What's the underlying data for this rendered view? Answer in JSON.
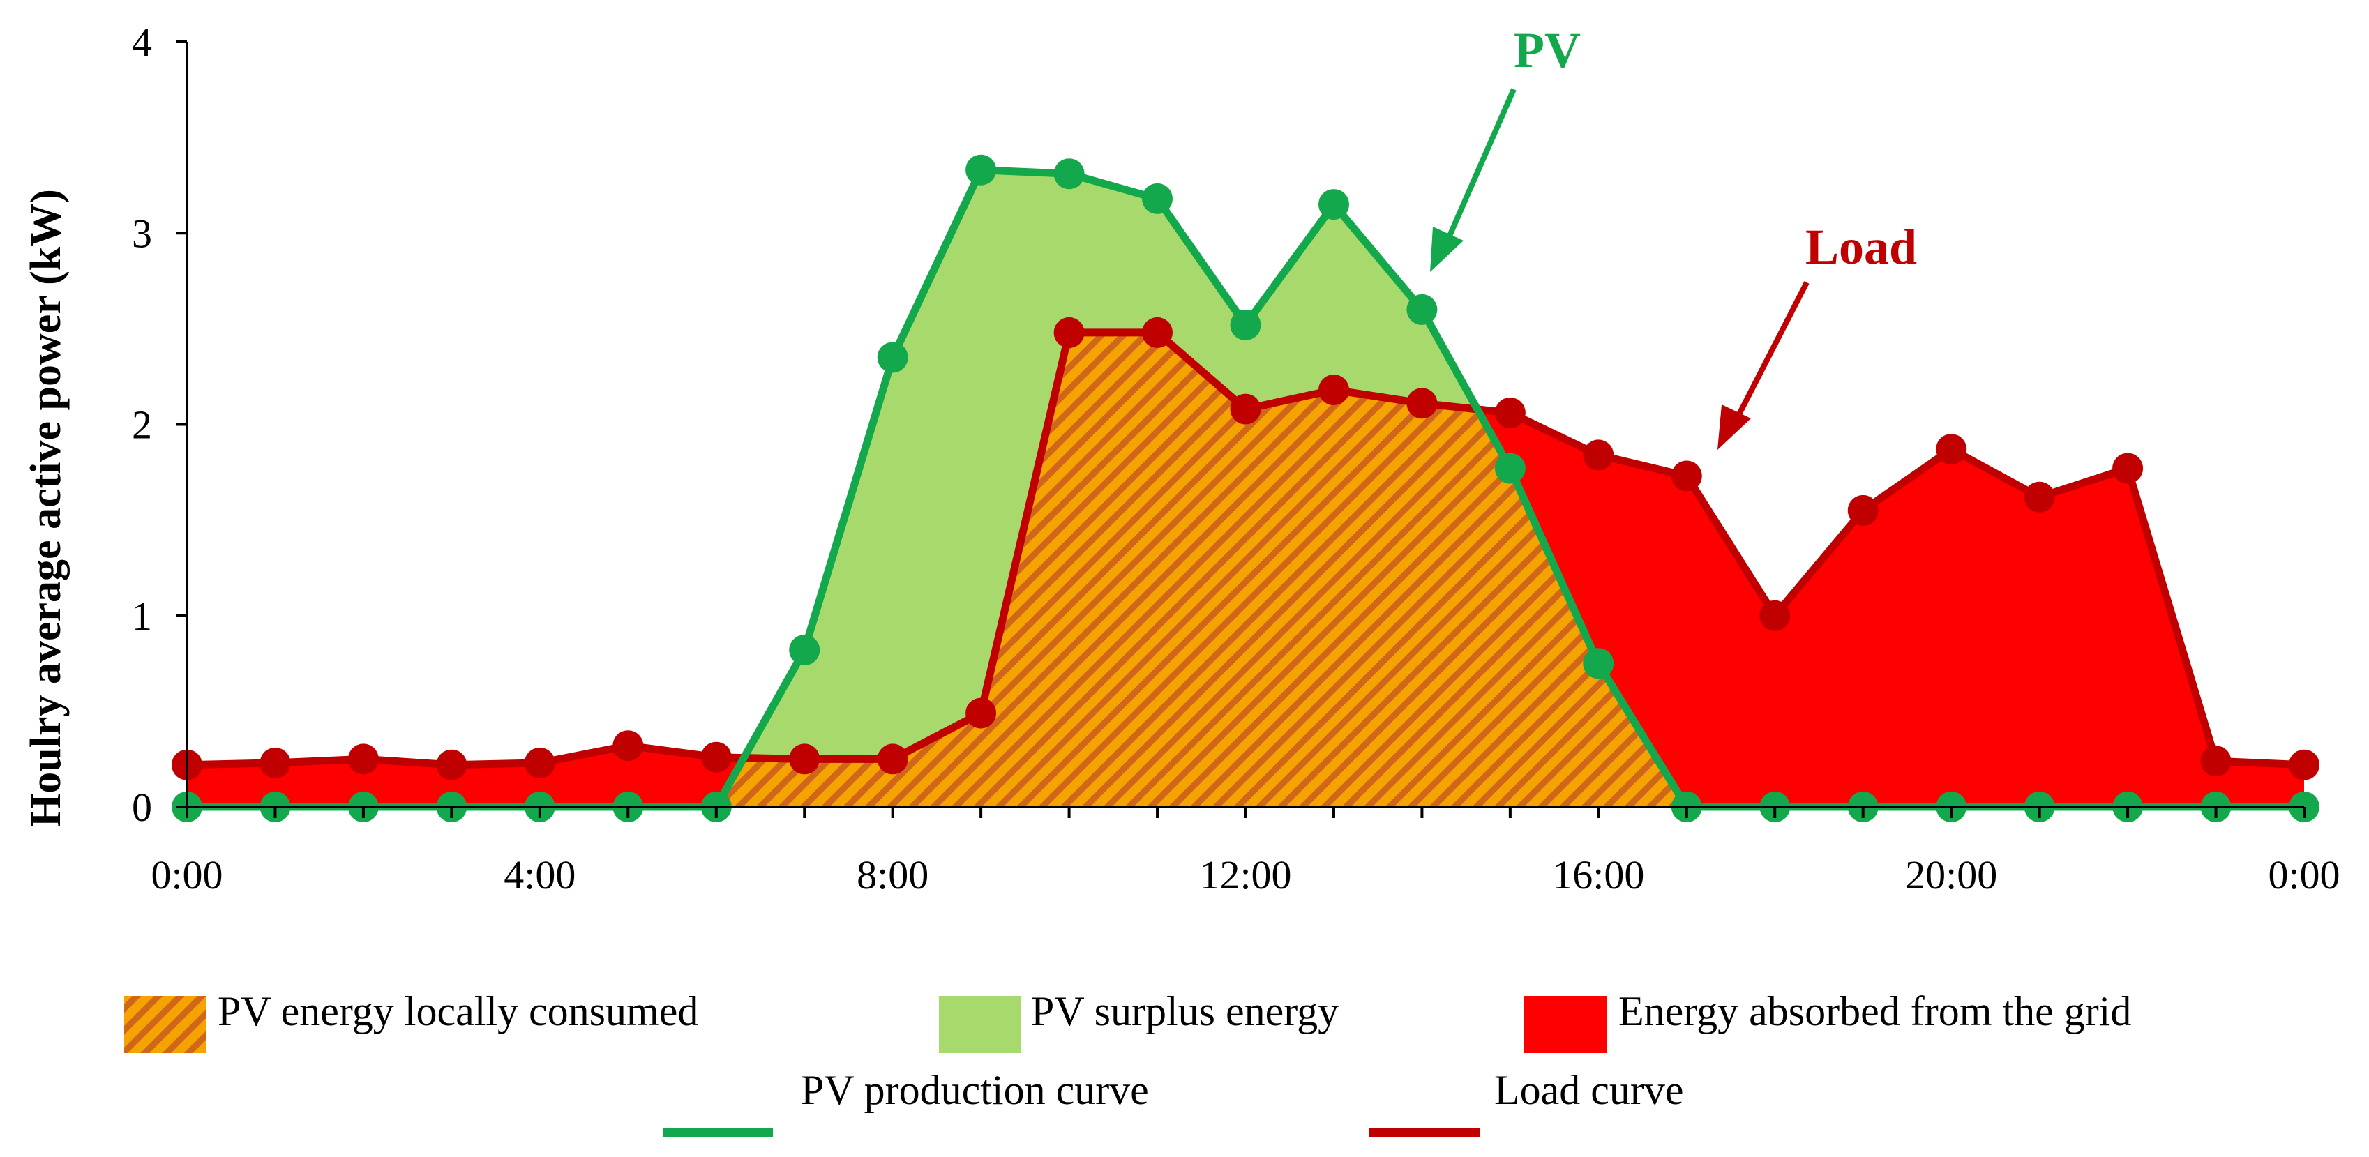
{
  "chart_data": {
    "type": "area",
    "title": "",
    "xlabel": "",
    "ylabel": "Houlry average active power (kW)",
    "x": [
      0,
      1,
      2,
      3,
      4,
      5,
      6,
      7,
      8,
      9,
      10,
      11,
      12,
      13,
      14,
      15,
      16,
      17,
      18,
      19,
      20,
      21,
      22,
      23,
      24
    ],
    "xticks": [
      0,
      4,
      8,
      12,
      16,
      20,
      24
    ],
    "xtick_labels": [
      "0:00",
      "4:00",
      "8:00",
      "12:00",
      "16:00",
      "20:00",
      "0:00"
    ],
    "xlim": [
      0,
      24
    ],
    "ylim": [
      0,
      4
    ],
    "yticks": [
      0,
      1,
      2,
      3,
      4
    ],
    "ytick_labels": [
      "0",
      "1",
      "2",
      "3",
      "4"
    ],
    "grid": false,
    "series": [
      {
        "name": "PV production curve",
        "color": "#12a84b",
        "values": [
          0,
          0,
          0,
          0,
          0,
          0,
          0,
          0.82,
          2.35,
          3.33,
          3.31,
          3.18,
          2.52,
          3.15,
          2.6,
          1.77,
          0.75,
          0,
          0,
          0,
          0,
          0,
          0,
          0,
          0
        ]
      },
      {
        "name": "Load curve",
        "color": "#c00000",
        "values": [
          0.22,
          0.23,
          0.25,
          0.22,
          0.23,
          0.32,
          0.26,
          0.25,
          0.25,
          0.49,
          2.48,
          2.48,
          2.08,
          2.18,
          2.11,
          2.06,
          1.84,
          1.73,
          1.0,
          1.55,
          1.87,
          1.62,
          1.77,
          0.24,
          0.22
        ]
      }
    ],
    "areas": [
      {
        "name": "PV energy locally consumed",
        "color": "#f5a300",
        "hatch_color": "#d0661a"
      },
      {
        "name": "PV surplus energy",
        "color": "#a8d96c"
      },
      {
        "name": "Energy absorbed from the grid",
        "color": "#ff0000"
      }
    ],
    "legend": [
      {
        "label": "PV energy locally consumed",
        "kind": "hatched-patch"
      },
      {
        "label": "PV surplus energy",
        "kind": "patch"
      },
      {
        "label": "Energy absorbed from the grid",
        "kind": "patch"
      },
      {
        "label": "PV production curve",
        "kind": "line"
      },
      {
        "label": "Load curve",
        "kind": "line"
      }
    ],
    "legend_position": "bottom",
    "annotations": [
      {
        "text": "PV",
        "color": "#12a84b",
        "points_to": "PV production curve"
      },
      {
        "text": "Load",
        "color": "#c00000",
        "points_to": "Load curve"
      }
    ]
  }
}
